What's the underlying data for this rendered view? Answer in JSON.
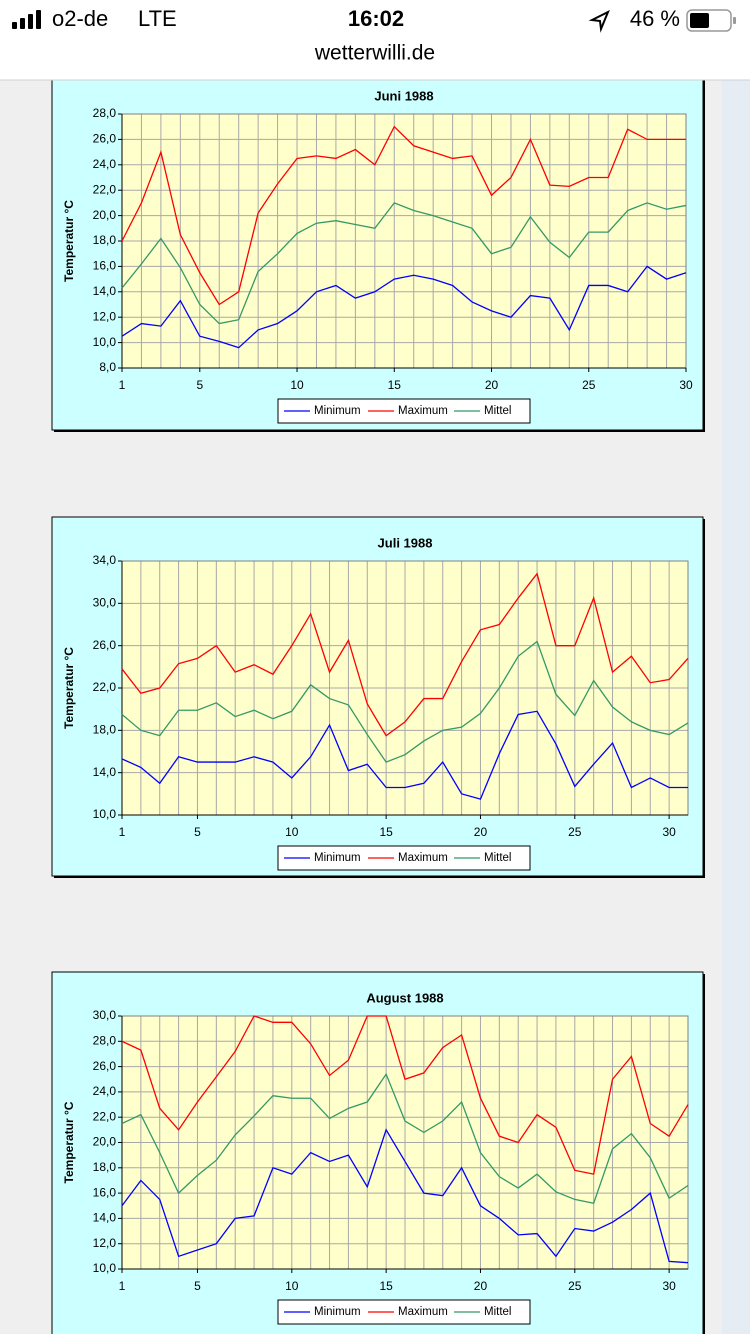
{
  "status_bar": {
    "carrier": "o2-de",
    "network": "LTE",
    "time": "16:02",
    "battery": "46 %"
  },
  "address": "wetterwilli.de",
  "chart_data": [
    {
      "type": "line",
      "title": "Juni 1988",
      "y_label": "Temperatur °C",
      "x": [
        1,
        2,
        3,
        4,
        5,
        6,
        7,
        8,
        9,
        10,
        11,
        12,
        13,
        14,
        15,
        16,
        17,
        18,
        19,
        20,
        21,
        22,
        23,
        24,
        25,
        26,
        27,
        28,
        29,
        30
      ],
      "xlim": [
        1,
        30
      ],
      "xticks": [
        1,
        5,
        10,
        15,
        20,
        25,
        30
      ],
      "ylim": [
        8,
        28
      ],
      "yticks": [
        {
          "value": 8,
          "label": "8,0"
        },
        {
          "value": 10,
          "label": "10,0"
        },
        {
          "value": 12,
          "label": "12,0"
        },
        {
          "value": 14,
          "label": "14,0"
        },
        {
          "value": 16,
          "label": "16,0"
        },
        {
          "value": 18,
          "label": "18,0"
        },
        {
          "value": 20,
          "label": "20,0"
        },
        {
          "value": 22,
          "label": "22,0"
        },
        {
          "value": 24,
          "label": "24,0"
        },
        {
          "value": 26,
          "label": "26,0"
        },
        {
          "value": 28,
          "label": "28,0"
        }
      ],
      "grid": true,
      "series": [
        {
          "name": "Minimum",
          "color": "#0000ff",
          "values": [
            10.5,
            11.5,
            11.3,
            13.3,
            10.5,
            10.1,
            9.6,
            11,
            11.5,
            12.5,
            14,
            14.5,
            13.5,
            14,
            15,
            15.3,
            15,
            14.5,
            13.2,
            12.5,
            12,
            13.7,
            13.5,
            11,
            14.5,
            14.5,
            14,
            16,
            15,
            15.5
          ]
        },
        {
          "name": "Maximum",
          "color": "#ff0000",
          "values": [
            18,
            21,
            25,
            18.5,
            15.5,
            13,
            14,
            20.2,
            22.5,
            24.5,
            24.7,
            24.5,
            25.2,
            24,
            27,
            25.5,
            25,
            24.5,
            24.7,
            21.6,
            23,
            26,
            22.4,
            22.3,
            23,
            23,
            26.8,
            26,
            26,
            26
          ]
        },
        {
          "name": "Mittel",
          "color": "#339966",
          "values": [
            14.3,
            16.2,
            18.2,
            15.9,
            13,
            11.5,
            11.8,
            15.6,
            17,
            18.6,
            19.4,
            19.6,
            19.3,
            19,
            21,
            20.4,
            20,
            19.5,
            19,
            17,
            17.5,
            19.9,
            17.9,
            16.7,
            18.7,
            18.7,
            20.4,
            21,
            20.5,
            20.8
          ]
        }
      ]
    },
    {
      "type": "line",
      "title": "Juli 1988",
      "y_label": "Temperatur °C",
      "x": [
        1,
        2,
        3,
        4,
        5,
        6,
        7,
        8,
        9,
        10,
        11,
        12,
        13,
        14,
        15,
        16,
        17,
        18,
        19,
        20,
        21,
        22,
        23,
        24,
        25,
        26,
        27,
        28,
        29,
        30,
        31
      ],
      "xlim": [
        1,
        31
      ],
      "xticks": [
        1,
        5,
        10,
        15,
        20,
        25,
        30
      ],
      "ylim": [
        10,
        34
      ],
      "yticks": [
        {
          "value": 10,
          "label": "10,0"
        },
        {
          "value": 14,
          "label": "14,0"
        },
        {
          "value": 18,
          "label": "18,0"
        },
        {
          "value": 22,
          "label": "22,0"
        },
        {
          "value": 26,
          "label": "26,0"
        },
        {
          "value": 30,
          "label": "30,0"
        },
        {
          "value": 34,
          "label": "34,0"
        }
      ],
      "grid": true,
      "series": [
        {
          "name": "Minimum",
          "color": "#0000ff",
          "values": [
            15.3,
            14.5,
            13,
            15.5,
            15,
            15,
            15,
            15.5,
            15,
            13.5,
            15.5,
            18.5,
            14.2,
            14.8,
            12.6,
            12.6,
            13,
            15,
            12,
            11.5,
            15.8,
            19.5,
            19.8,
            16.7,
            12.7,
            14.8,
            16.8,
            12.6,
            13.5,
            12.6,
            12.6
          ]
        },
        {
          "name": "Maximum",
          "color": "#ff0000",
          "values": [
            23.8,
            21.5,
            22,
            24.3,
            24.8,
            26,
            23.5,
            24.2,
            23.3,
            26,
            29,
            23.5,
            26.5,
            20.5,
            17.5,
            18.8,
            21,
            21,
            24.5,
            27.5,
            28,
            30.5,
            32.8,
            26,
            26,
            30.5,
            23.5,
            25,
            22.5,
            22.8,
            24.8
          ]
        },
        {
          "name": "Mittel",
          "color": "#339966",
          "values": [
            19.5,
            18,
            17.5,
            19.9,
            19.9,
            20.6,
            19.3,
            19.9,
            19.1,
            19.8,
            22.3,
            21,
            20.4,
            17.6,
            15,
            15.7,
            17,
            18,
            18.3,
            19.6,
            22,
            25,
            26.4,
            21.4,
            19.4,
            22.7,
            20.2,
            18.8,
            18,
            17.6,
            18.7
          ]
        }
      ]
    },
    {
      "type": "line",
      "title": "August 1988",
      "y_label": "Temperatur °C",
      "x": [
        1,
        2,
        3,
        4,
        5,
        6,
        7,
        8,
        9,
        10,
        11,
        12,
        13,
        14,
        15,
        16,
        17,
        18,
        19,
        20,
        21,
        22,
        23,
        24,
        25,
        26,
        27,
        28,
        29,
        30,
        31
      ],
      "xlim": [
        1,
        31
      ],
      "xticks": [
        1,
        5,
        10,
        15,
        20,
        25,
        30
      ],
      "ylim": [
        10,
        30
      ],
      "yticks": [
        {
          "value": 10,
          "label": "10,0"
        },
        {
          "value": 12,
          "label": "12,0"
        },
        {
          "value": 14,
          "label": "14,0"
        },
        {
          "value": 16,
          "label": "16,0"
        },
        {
          "value": 18,
          "label": "18,0"
        },
        {
          "value": 20,
          "label": "20,0"
        },
        {
          "value": 22,
          "label": "22,0"
        },
        {
          "value": 24,
          "label": "24,0"
        },
        {
          "value": 26,
          "label": "26,0"
        },
        {
          "value": 28,
          "label": "28,0"
        },
        {
          "value": 30,
          "label": "30,0"
        }
      ],
      "grid": true,
      "series": [
        {
          "name": "Minimum",
          "color": "#0000ff",
          "values": [
            15,
            17,
            15.5,
            11,
            11.5,
            12,
            14,
            14.2,
            18,
            17.5,
            19.2,
            18.5,
            19,
            16.5,
            21,
            18.5,
            16,
            15.8,
            18,
            15,
            14,
            12.7,
            12.8,
            11,
            13.2,
            13,
            13.7,
            14.7,
            16,
            10.6,
            10.5
          ]
        },
        {
          "name": "Maximum",
          "color": "#ff0000",
          "values": [
            28,
            27.3,
            22.7,
            21,
            23.2,
            25.2,
            27.2,
            30,
            29.5,
            29.5,
            27.8,
            25.3,
            26.5,
            30,
            30,
            25,
            25.5,
            27.5,
            28.5,
            23.5,
            20.5,
            20,
            22.2,
            21.2,
            17.8,
            17.5,
            25,
            26.8,
            21.5,
            20.5,
            23
          ]
        },
        {
          "name": "Mittel",
          "color": "#339966",
          "values": [
            21.5,
            22.2,
            19.2,
            16,
            17.4,
            18.6,
            20.6,
            22.1,
            23.7,
            23.5,
            23.5,
            21.9,
            22.7,
            23.2,
            25.4,
            21.7,
            20.8,
            21.7,
            23.2,
            19.2,
            17.3,
            16.4,
            17.5,
            16.1,
            15.5,
            15.2,
            19.5,
            20.7,
            18.8,
            15.6,
            16.6
          ]
        }
      ]
    }
  ]
}
